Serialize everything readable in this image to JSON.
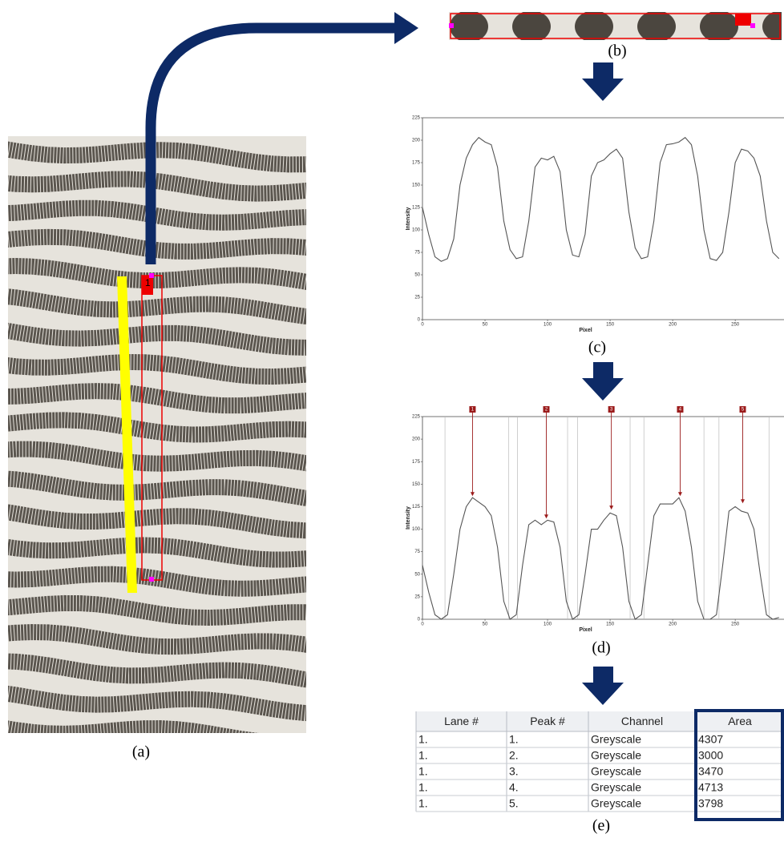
{
  "captions": {
    "a": "(a)",
    "b": "(b)",
    "c": "(c)",
    "d": "(d)",
    "e": "(e)"
  },
  "roi_label": "1",
  "chart_data": [
    {
      "type": "line",
      "xlabel": "Pixel",
      "ylabel": "Intensity",
      "color": "#555555",
      "x": [
        0,
        5,
        10,
        15,
        20,
        25,
        30,
        35,
        40,
        45,
        50,
        55,
        60,
        65,
        70,
        75,
        80,
        85,
        90,
        95,
        100,
        105,
        110,
        115,
        120,
        125,
        130,
        135,
        140,
        145,
        150,
        155,
        160,
        165,
        170,
        175,
        180,
        185,
        190,
        195,
        200,
        205,
        210,
        215,
        220,
        225,
        230,
        235,
        240,
        245,
        250,
        255,
        260,
        265,
        270,
        275,
        280,
        285
      ],
      "values": [
        125,
        95,
        70,
        65,
        68,
        90,
        150,
        180,
        195,
        203,
        198,
        195,
        170,
        110,
        78,
        68,
        70,
        110,
        170,
        180,
        178,
        182,
        165,
        100,
        72,
        70,
        95,
        160,
        175,
        178,
        185,
        190,
        180,
        120,
        80,
        68,
        70,
        110,
        175,
        195,
        196,
        198,
        203,
        195,
        160,
        100,
        68,
        66,
        75,
        120,
        175,
        190,
        188,
        180,
        160,
        110,
        75,
        68
      ],
      "xlim": [
        0,
        289
      ],
      "ylim": [
        0,
        225
      ],
      "xticks": [
        0,
        50,
        100,
        150,
        200,
        250
      ],
      "yticks": [
        0,
        25,
        50,
        75,
        100,
        125,
        150,
        175,
        200,
        225
      ]
    },
    {
      "type": "line",
      "xlabel": "Pixel",
      "ylabel": "Intensity",
      "color": "#555555",
      "x": [
        0,
        5,
        10,
        15,
        20,
        25,
        30,
        35,
        40,
        45,
        50,
        55,
        60,
        65,
        70,
        75,
        80,
        85,
        90,
        95,
        100,
        105,
        110,
        115,
        120,
        125,
        130,
        135,
        140,
        145,
        150,
        155,
        160,
        165,
        170,
        175,
        180,
        185,
        190,
        195,
        200,
        205,
        210,
        215,
        220,
        225,
        230,
        235,
        240,
        245,
        250,
        255,
        260,
        265,
        270,
        275,
        280,
        285
      ],
      "values": [
        60,
        30,
        5,
        0,
        5,
        50,
        100,
        125,
        135,
        130,
        125,
        115,
        80,
        20,
        0,
        5,
        60,
        105,
        110,
        105,
        110,
        108,
        80,
        20,
        0,
        5,
        50,
        100,
        100,
        110,
        118,
        115,
        80,
        20,
        0,
        5,
        60,
        115,
        128,
        128,
        128,
        135,
        120,
        80,
        20,
        0,
        0,
        5,
        60,
        120,
        125,
        120,
        118,
        100,
        50,
        5,
        0,
        2
      ],
      "xlim": [
        0,
        289
      ],
      "ylim": [
        0,
        225
      ],
      "xticks": [
        0,
        50,
        100,
        150,
        200,
        250
      ],
      "yticks": [
        0,
        25,
        50,
        75,
        100,
        125,
        150,
        175,
        200,
        225
      ],
      "boundaries": [
        18,
        69,
        76,
        116,
        124,
        166,
        177,
        225,
        237,
        277
      ],
      "peaks": [
        {
          "label": "1",
          "x": 40,
          "y": 135
        },
        {
          "label": "2",
          "x": 99,
          "y": 110
        },
        {
          "label": "3",
          "x": 151,
          "y": 120
        },
        {
          "label": "4",
          "x": 206,
          "y": 135
        },
        {
          "label": "5",
          "x": 256,
          "y": 127
        }
      ]
    }
  ],
  "table": {
    "columns": [
      "Lane #",
      "Peak #",
      "Channel",
      "Area"
    ],
    "rows": [
      [
        "1.",
        "1.",
        "Greyscale",
        4307
      ],
      [
        "1.",
        "2.",
        "Greyscale",
        3000
      ],
      [
        "1.",
        "3.",
        "Greyscale",
        3470
      ],
      [
        "1.",
        "4.",
        "Greyscale",
        4713
      ],
      [
        "1.",
        "5.",
        "Greyscale",
        3798
      ]
    ]
  }
}
